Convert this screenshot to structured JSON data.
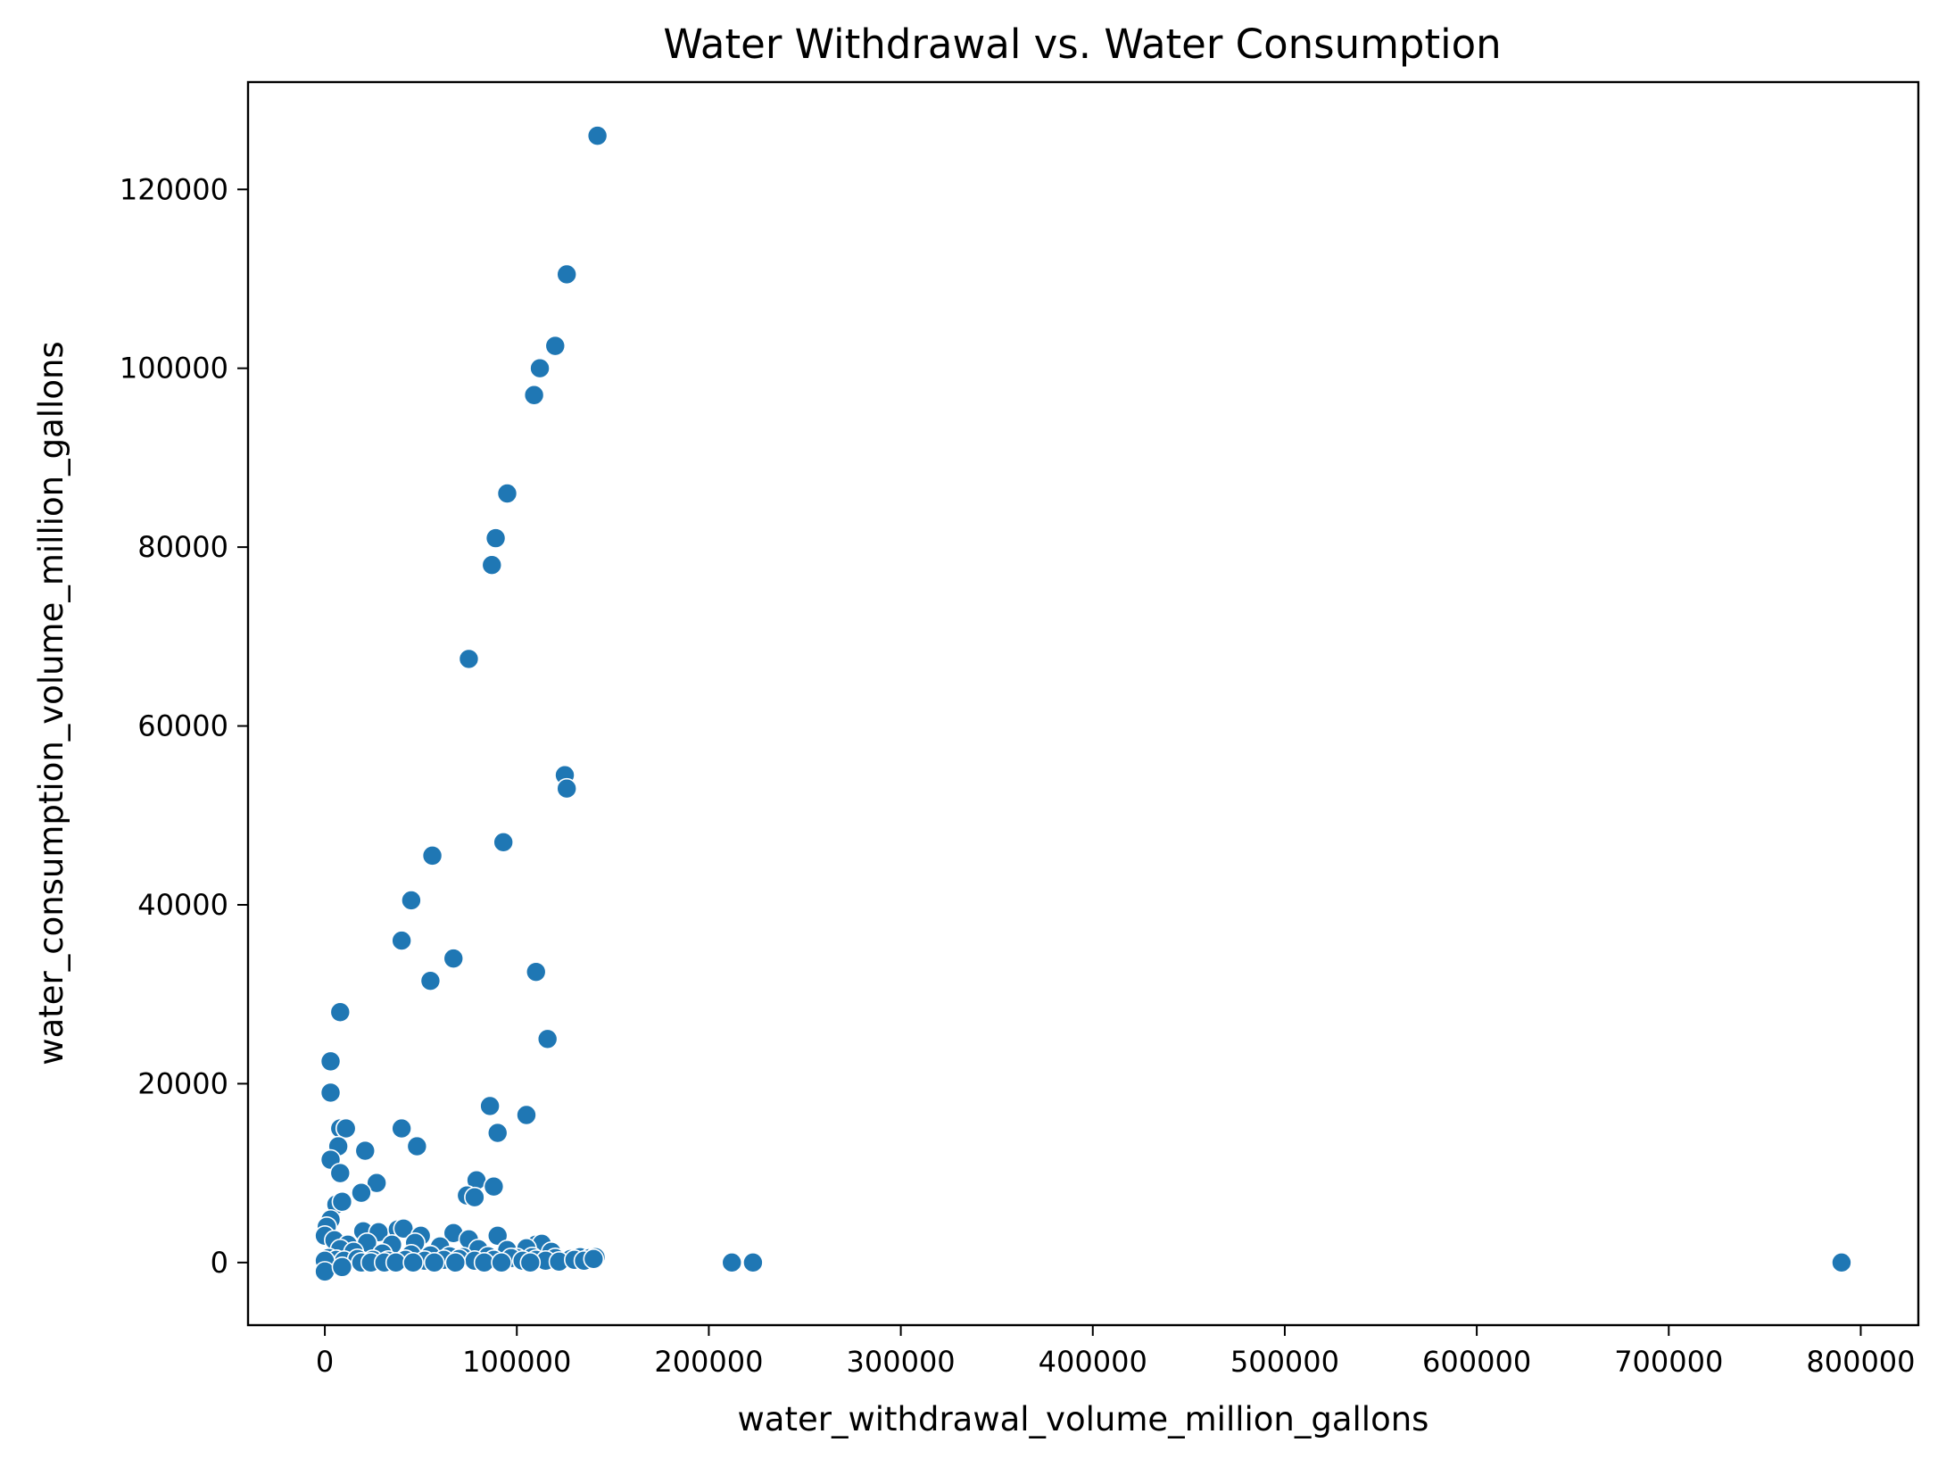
{
  "chart_data": {
    "type": "scatter",
    "title": "Water Withdrawal vs. Water Consumption",
    "xlabel": "water_withdrawal_volume_million_gallons",
    "ylabel": "water_consumption_volume_million_gallons",
    "xlim": [
      -40000,
      830000
    ],
    "ylim": [
      -7000,
      132000
    ],
    "xticks": [
      0,
      100000,
      200000,
      300000,
      400000,
      500000,
      600000,
      700000,
      800000
    ],
    "yticks": [
      0,
      20000,
      40000,
      60000,
      80000,
      100000,
      120000
    ],
    "grid": false,
    "color": "#1f77b4",
    "series": [
      {
        "points": [
          [
            142000,
            126000
          ],
          [
            126000,
            110500
          ],
          [
            120000,
            102500
          ],
          [
            112000,
            100000
          ],
          [
            109000,
            97000
          ],
          [
            95000,
            86000
          ],
          [
            89000,
            81000
          ],
          [
            87000,
            78000
          ],
          [
            75000,
            67500
          ],
          [
            125000,
            54500
          ],
          [
            126000,
            53000
          ],
          [
            93000,
            47000
          ],
          [
            56000,
            45500
          ],
          [
            45000,
            40500
          ],
          [
            40000,
            36000
          ],
          [
            67000,
            34000
          ],
          [
            55000,
            31500
          ],
          [
            110000,
            32500
          ],
          [
            116000,
            25000
          ],
          [
            8000,
            28000
          ],
          [
            3000,
            22500
          ],
          [
            3000,
            19000
          ],
          [
            86000,
            17500
          ],
          [
            105000,
            16500
          ],
          [
            40000,
            15000
          ],
          [
            90000,
            14500
          ],
          [
            8000,
            15000
          ],
          [
            11000,
            15000
          ],
          [
            48000,
            13000
          ],
          [
            21000,
            12500
          ],
          [
            7000,
            13000
          ],
          [
            3000,
            11500
          ],
          [
            8000,
            10000
          ],
          [
            79000,
            9200
          ],
          [
            27000,
            8900
          ],
          [
            88000,
            8500
          ],
          [
            19000,
            7800
          ],
          [
            74000,
            7500
          ],
          [
            78000,
            7300
          ],
          [
            6000,
            6500
          ],
          [
            9000,
            6800
          ],
          [
            3000,
            4800
          ],
          [
            1000,
            4000
          ],
          [
            0,
            3000
          ],
          [
            20000,
            3500
          ],
          [
            28000,
            3400
          ],
          [
            38000,
            3700
          ],
          [
            41000,
            3800
          ],
          [
            50000,
            3000
          ],
          [
            67000,
            3300
          ],
          [
            75000,
            2600
          ],
          [
            90000,
            3000
          ],
          [
            110000,
            2000
          ],
          [
            113000,
            2100
          ],
          [
            5000,
            2500
          ],
          [
            12000,
            2000
          ],
          [
            22000,
            2200
          ],
          [
            35000,
            2000
          ],
          [
            47000,
            2200
          ],
          [
            60000,
            1800
          ],
          [
            80000,
            1500
          ],
          [
            95000,
            1400
          ],
          [
            105000,
            1600
          ],
          [
            118000,
            1200
          ],
          [
            8000,
            1500
          ],
          [
            15000,
            1200
          ],
          [
            30000,
            1000
          ],
          [
            45000,
            900
          ],
          [
            55000,
            800
          ],
          [
            65000,
            700
          ],
          [
            72000,
            600
          ],
          [
            85000,
            700
          ],
          [
            100000,
            500
          ],
          [
            108000,
            600
          ],
          [
            120000,
            500
          ],
          [
            128000,
            400
          ],
          [
            133000,
            600
          ],
          [
            138000,
            500
          ],
          [
            141000,
            600
          ],
          [
            2000,
            500
          ],
          [
            6000,
            300
          ],
          [
            10000,
            200
          ],
          [
            17000,
            400
          ],
          [
            25000,
            300
          ],
          [
            33000,
            200
          ],
          [
            42000,
            300
          ],
          [
            52000,
            200
          ],
          [
            62000,
            300
          ],
          [
            70000,
            400
          ],
          [
            78000,
            200
          ],
          [
            88000,
            300
          ],
          [
            97000,
            500
          ],
          [
            103000,
            200
          ],
          [
            110000,
            300
          ],
          [
            115000,
            200
          ],
          [
            122000,
            100
          ],
          [
            130000,
            300
          ],
          [
            135000,
            200
          ],
          [
            140000,
            400
          ],
          [
            0,
            200
          ],
          [
            0,
            -1000
          ],
          [
            9000,
            -500
          ],
          [
            19000,
            0
          ],
          [
            24000,
            0
          ],
          [
            31000,
            0
          ],
          [
            37000,
            0
          ],
          [
            46000,
            0
          ],
          [
            57000,
            0
          ],
          [
            68000,
            0
          ],
          [
            83000,
            0
          ],
          [
            92000,
            0
          ],
          [
            107000,
            0
          ],
          [
            212000,
            0
          ],
          [
            223000,
            0
          ],
          [
            790000,
            0
          ]
        ]
      }
    ]
  }
}
